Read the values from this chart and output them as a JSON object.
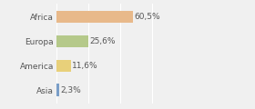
{
  "categories": [
    "Africa",
    "Europa",
    "America",
    "Asia"
  ],
  "values": [
    60.5,
    25.6,
    11.6,
    2.3
  ],
  "labels": [
    "60,5%",
    "25,6%",
    "11,6%",
    "2,3%"
  ],
  "bar_colors": [
    "#e8b98a",
    "#b5c98a",
    "#e8d07a",
    "#7a9ec8"
  ],
  "background_color": "#f0f0f0",
  "xlim": [
    0,
    100
  ],
  "label_fontsize": 6.5,
  "tick_fontsize": 6.5,
  "bar_height": 0.5
}
